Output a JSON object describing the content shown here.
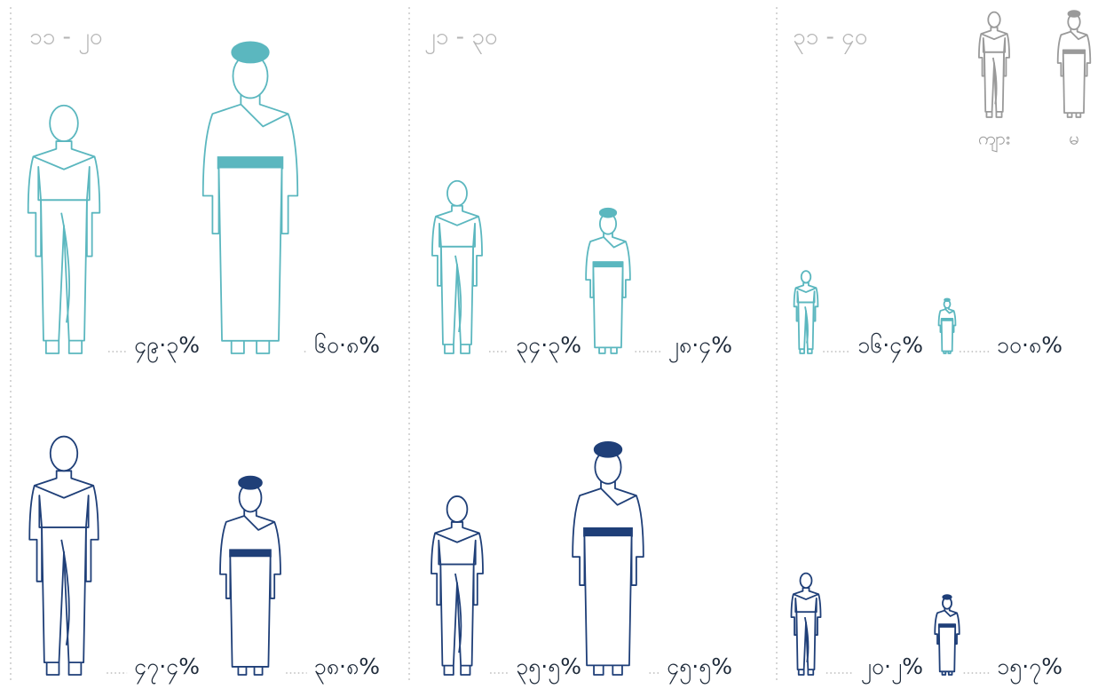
{
  "chart_data": {
    "type": "pictogram",
    "categories": [
      "၁၁ - ၂၀",
      "၂၁ - ၃၀",
      "၃၁ - ၄၀"
    ],
    "legend": [
      "ကျား",
      "မ"
    ],
    "legend_color": "#9a9a9a",
    "rows": [
      {
        "color": "#5bb7bf",
        "values": [
          [
            49.3,
            60.8
          ],
          [
            34.3,
            28.4
          ],
          [
            16.4,
            10.8
          ]
        ],
        "value_labels": [
          [
            "၄၉·၃%",
            "၆၀·၈%"
          ],
          [
            "၃၄·၃%",
            "၂၈·၄%"
          ],
          [
            "၁၆·၄%",
            "၁၀·၈%"
          ]
        ]
      },
      {
        "color": "#1f3f78",
        "values": [
          [
            47.4,
            38.8
          ],
          [
            35.5,
            45.5
          ],
          [
            20.2,
            15.7
          ]
        ],
        "value_labels": [
          [
            "၄၇·၄%",
            "၃၈·၈%"
          ],
          [
            "၃၅·၅%",
            "၄၅·၅%"
          ],
          [
            "၂၀·၂%",
            "၁၅·၇%"
          ]
        ]
      }
    ]
  }
}
